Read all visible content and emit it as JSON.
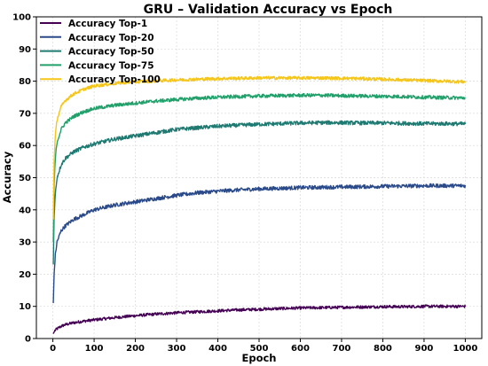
{
  "chart_data": {
    "type": "line",
    "title": "GRU – Validation Accuracy vs Epoch",
    "xlabel": "Epoch",
    "ylabel": "Accuracy",
    "xlim": [
      -40,
      1040
    ],
    "ylim": [
      0,
      100
    ],
    "xticks": [
      0,
      100,
      200,
      300,
      400,
      500,
      600,
      700,
      800,
      900,
      1000
    ],
    "yticks": [
      0,
      10,
      20,
      30,
      40,
      50,
      60,
      70,
      80,
      90,
      100
    ],
    "grid": true,
    "legend_position": "top-left",
    "series": [
      {
        "name": "Accuracy Top-1",
        "color": "#440154",
        "x": [
          1,
          5,
          10,
          20,
          30,
          50,
          75,
          100,
          150,
          200,
          250,
          300,
          350,
          400,
          450,
          500,
          550,
          600,
          650,
          700,
          750,
          800,
          850,
          900,
          950,
          1000
        ],
        "y": [
          1.5,
          2.5,
          3.0,
          3.8,
          4.3,
          4.9,
          5.4,
          5.8,
          6.5,
          7.1,
          7.6,
          8.0,
          8.3,
          8.6,
          8.9,
          9.1,
          9.3,
          9.5,
          9.6,
          9.7,
          9.8,
          9.9,
          9.9,
          10.0,
          10.0,
          10.0
        ]
      },
      {
        "name": "Accuracy Top-20",
        "color": "#2a4a8a",
        "x": [
          1,
          3,
          6,
          10,
          20,
          30,
          50,
          75,
          100,
          150,
          200,
          250,
          300,
          350,
          400,
          450,
          500,
          550,
          600,
          650,
          700,
          750,
          800,
          850,
          900,
          950,
          1000
        ],
        "y": [
          11,
          20,
          26,
          30,
          33.5,
          35,
          37,
          38.5,
          40,
          41.5,
          42.5,
          43.5,
          44.5,
          45.3,
          45.8,
          46.2,
          46.5,
          46.7,
          46.9,
          47.0,
          47.1,
          47.2,
          47.3,
          47.4,
          47.5,
          47.5,
          47.5
        ]
      },
      {
        "name": "Accuracy Top-50",
        "color": "#1f7a72",
        "x": [
          1,
          3,
          6,
          10,
          20,
          30,
          50,
          75,
          100,
          150,
          200,
          250,
          300,
          350,
          400,
          450,
          500,
          550,
          600,
          650,
          700,
          750,
          800,
          850,
          900,
          950,
          1000
        ],
        "y": [
          23,
          38,
          45,
          50,
          54,
          56,
          58,
          59.5,
          60.5,
          62,
          63,
          64,
          65,
          65.5,
          66,
          66.3,
          66.6,
          66.8,
          67.0,
          67.1,
          67.1,
          67.0,
          67.0,
          66.9,
          66.8,
          66.8,
          66.7
        ]
      },
      {
        "name": "Accuracy Top-75",
        "color": "#22a06b",
        "x": [
          1,
          3,
          6,
          10,
          20,
          30,
          50,
          75,
          100,
          150,
          200,
          250,
          300,
          350,
          400,
          450,
          500,
          550,
          600,
          650,
          700,
          750,
          800,
          850,
          900,
          950,
          1000
        ],
        "y": [
          30,
          48,
          56,
          61,
          65,
          67,
          69,
          70.5,
          71.5,
          72.5,
          73.2,
          73.8,
          74.3,
          74.7,
          75.0,
          75.2,
          75.4,
          75.5,
          75.6,
          75.6,
          75.5,
          75.4,
          75.3,
          75.2,
          75.0,
          74.9,
          74.8
        ]
      },
      {
        "name": "Accuracy Top-100",
        "color": "#f5c518",
        "x": [
          1,
          3,
          6,
          10,
          20,
          30,
          50,
          75,
          100,
          150,
          200,
          250,
          300,
          350,
          400,
          450,
          500,
          550,
          600,
          650,
          700,
          750,
          800,
          850,
          900,
          950,
          1000
        ],
        "y": [
          37,
          55,
          63,
          68,
          72,
          74,
          76,
          77.5,
          78.5,
          79.3,
          79.8,
          80.1,
          80.4,
          80.6,
          80.8,
          80.9,
          81.0,
          81.0,
          81.0,
          81.0,
          80.9,
          80.8,
          80.6,
          80.4,
          80.2,
          80.0,
          79.8
        ]
      }
    ]
  }
}
